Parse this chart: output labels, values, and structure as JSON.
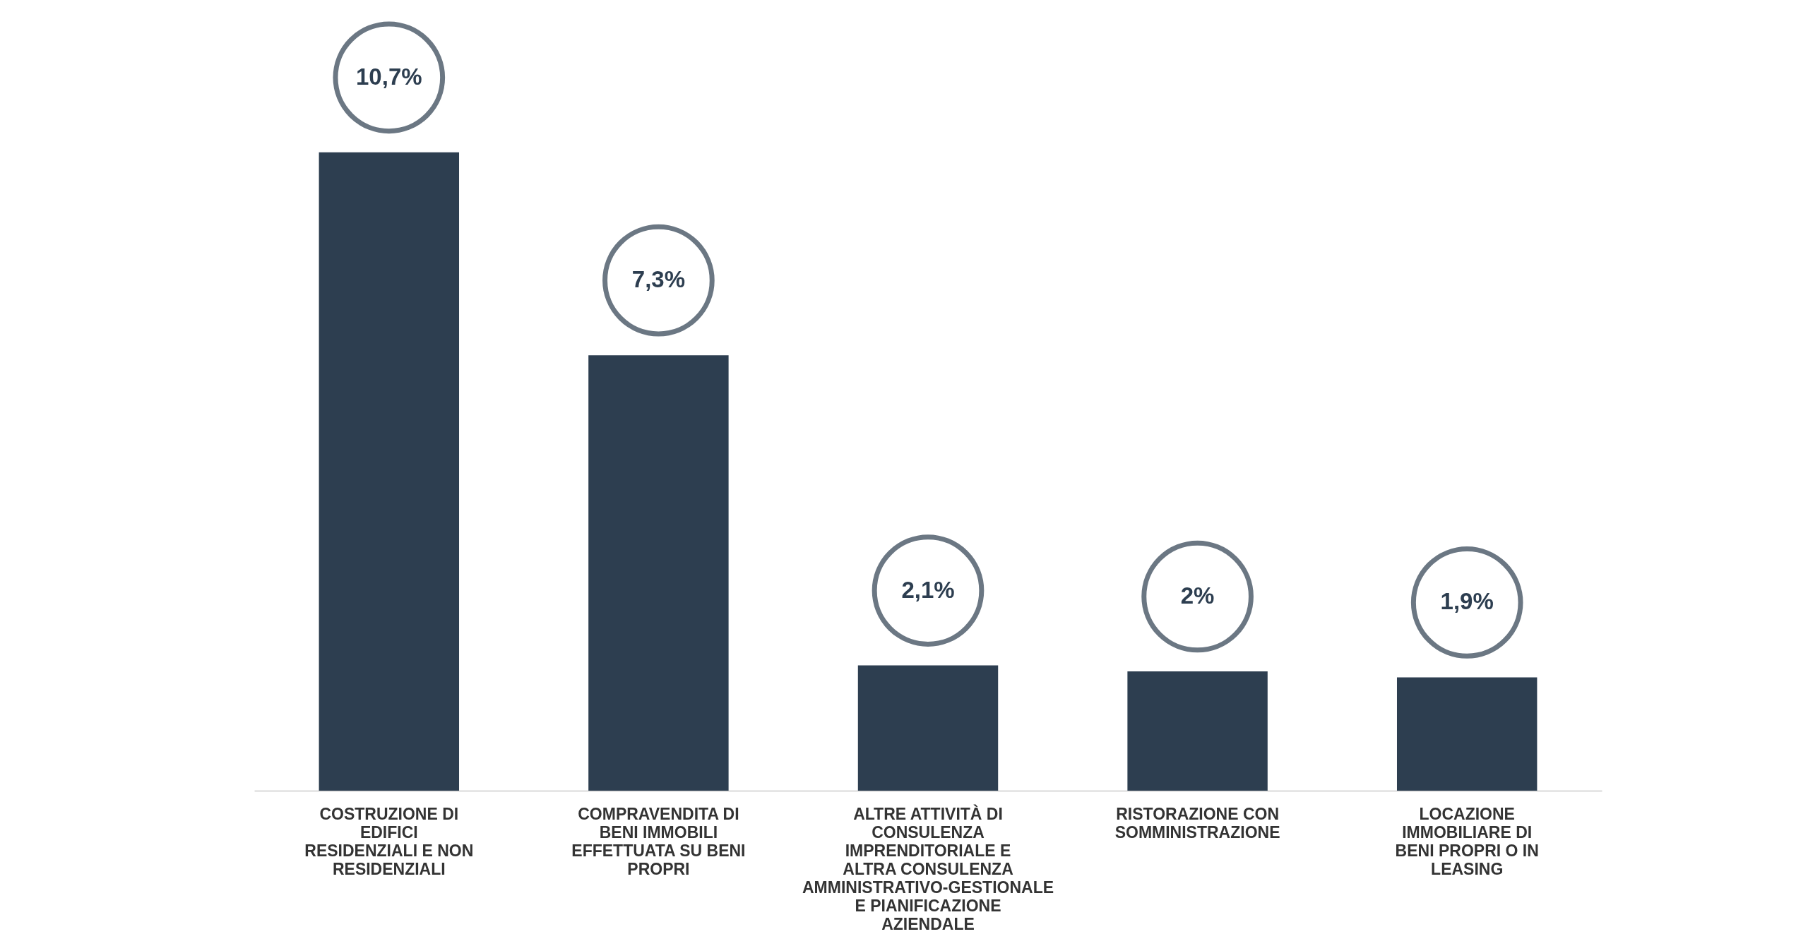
{
  "chart_data": {
    "type": "bar",
    "categories": [
      "COSTRUZIONE DI EDIFICI RESIDENZIALI E NON RESIDENZIALI",
      "COMPRAVENDITA DI BENI IMMOBILI EFFETTUATA SU BENI PROPRI",
      "ALTRE ATTIVITÀ DI CONSULENZA IMPRENDITORIALE  E ALTRA CONSULENZA AMMINISTRATIVO-GESTIONALE E PIANIFICAZIONE AZIENDALE",
      "RISTORAZIONE CON SOMMINISTRAZIONE",
      "LOCAZIONE IMMOBILIARE DI BENI PROPRI O IN LEASING"
    ],
    "values": [
      10.7,
      7.3,
      2.1,
      2,
      1.9
    ],
    "value_labels": [
      "10,7%",
      "7,3%",
      "2,1%",
      "2%",
      "1,9%"
    ],
    "color": "#2d3e50",
    "grid": false
  }
}
